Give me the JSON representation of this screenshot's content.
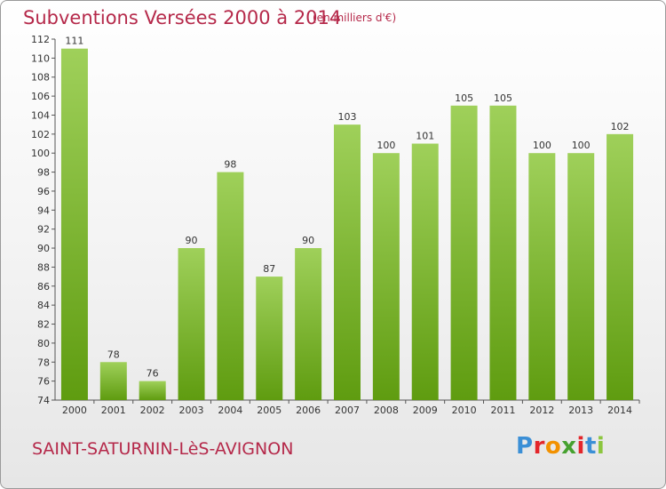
{
  "header": {
    "title": "Subventions Versées 2000 à 2014",
    "subtitle": "(en milliers d'€)"
  },
  "footer": {
    "commune": "SAINT-SATURNIN-LèS-AVIGNON",
    "brand_letters": [
      "P",
      "r",
      "o",
      "x",
      "i",
      "t",
      "i"
    ],
    "brand_colors": [
      "#3b8fd6",
      "#e3262b",
      "#f29100",
      "#46a12f",
      "#e3262b",
      "#3b8fd6",
      "#8cc63f"
    ]
  },
  "colors": {
    "bar_light": "#9fd05a",
    "bar_dark": "#5f9c10",
    "accent": "#b5294a"
  },
  "chart_data": {
    "type": "bar",
    "title": "Subventions Versées 2000 à 2014",
    "subtitle": "(en milliers d'€)",
    "categories": [
      "2000",
      "2001",
      "2002",
      "2003",
      "2004",
      "2005",
      "2006",
      "2007",
      "2008",
      "2009",
      "2010",
      "2011",
      "2012",
      "2013",
      "2014"
    ],
    "values": [
      111,
      78,
      76,
      90,
      98,
      87,
      90,
      103,
      100,
      101,
      105,
      105,
      100,
      100,
      102
    ],
    "ylim": [
      74,
      112
    ],
    "yticks": [
      74,
      76,
      78,
      80,
      82,
      84,
      86,
      88,
      90,
      92,
      94,
      96,
      98,
      100,
      102,
      104,
      106,
      108,
      110,
      112
    ],
    "grid": false,
    "legend": "none"
  }
}
